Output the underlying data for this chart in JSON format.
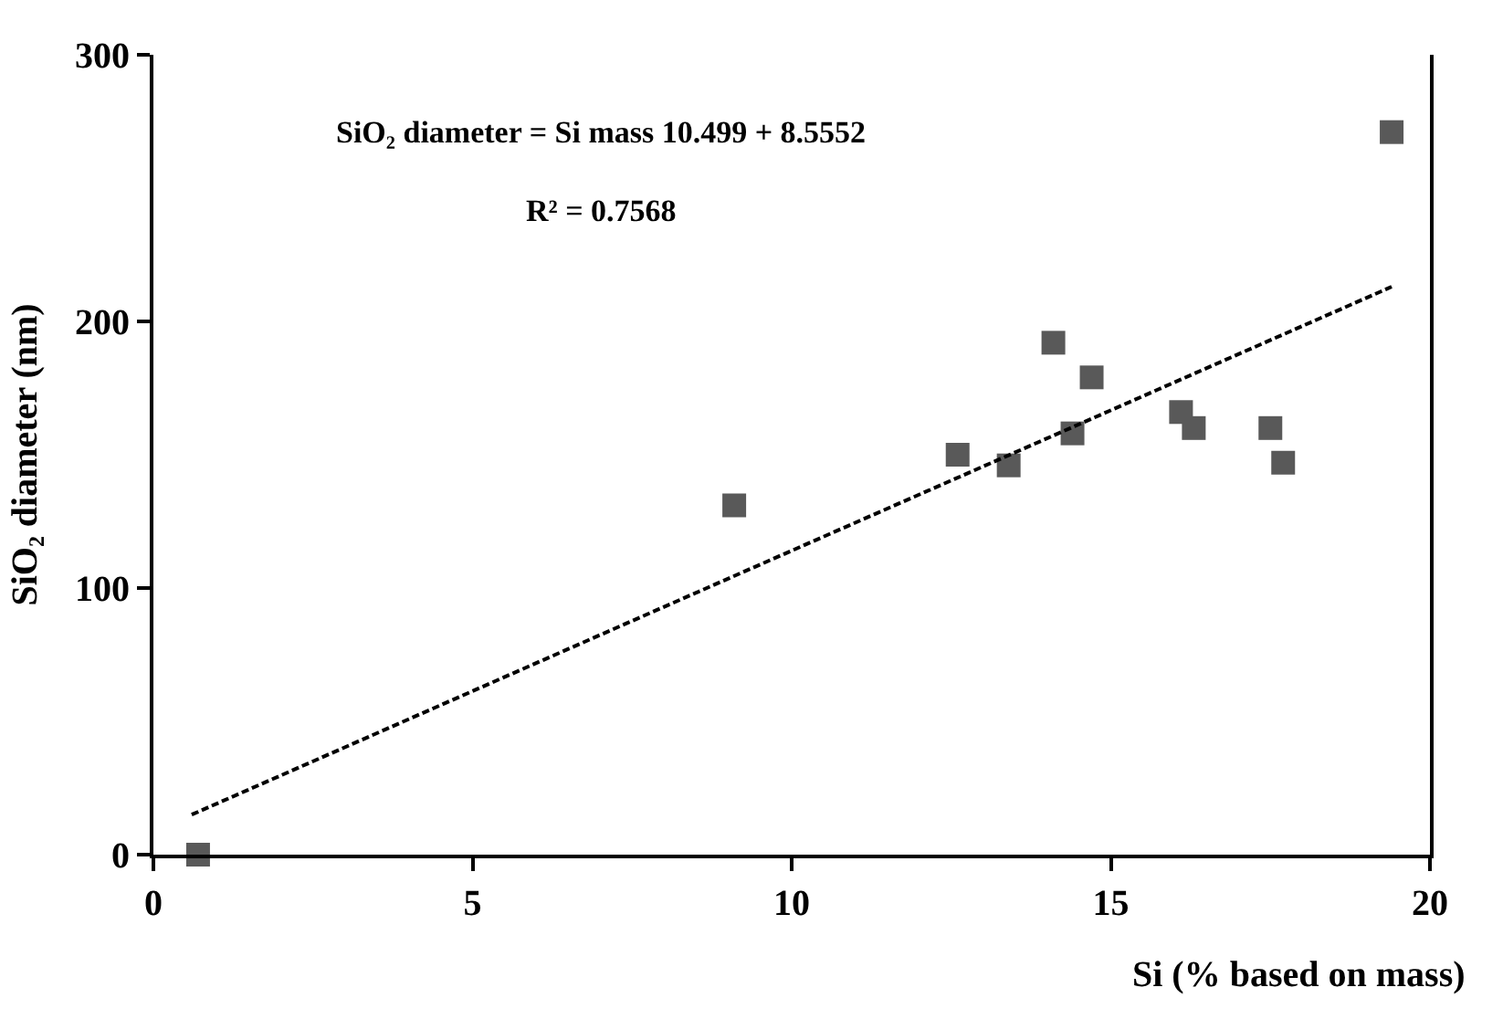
{
  "chart_data": {
    "type": "scatter",
    "xlabel": "Si (% based on mass)",
    "ylabel": "SiO₂ diameter (nm)",
    "xlim": [
      0,
      20
    ],
    "xticks": [
      0,
      5,
      10,
      15,
      20
    ],
    "ylim": [
      0,
      300
    ],
    "yticks": [
      0,
      100,
      200,
      300
    ],
    "marker": "square",
    "series": [
      {
        "color": "#595959",
        "x": [
          0.7,
          9.1,
          12.6,
          13.4,
          14.1,
          14.4,
          14.7,
          16.1,
          16.3,
          17.5,
          17.7,
          19.4
        ],
        "values": [
          0,
          131,
          150,
          146,
          192,
          158,
          179,
          166,
          160,
          160,
          147,
          271
        ]
      },
      {
        "type": "line",
        "color": "#000000",
        "line_style": "dashed",
        "marker": "none",
        "x": [
          0.6,
          19.4
        ],
        "values": [
          15,
          213
        ]
      }
    ],
    "annotations": [
      "SiO₂ diameter = Si mass 10.499 + 8.5552",
      "R² = 0.7568"
    ]
  }
}
